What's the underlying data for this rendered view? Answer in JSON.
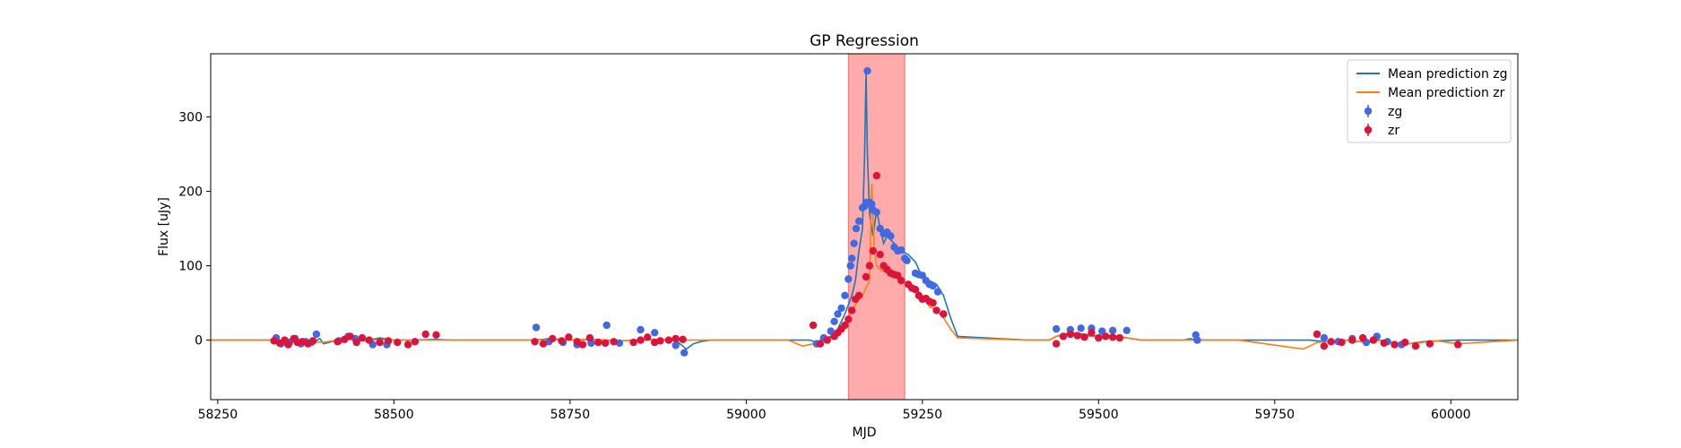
{
  "chart_data": {
    "type": "scatter",
    "title": "GP Regression",
    "xlabel": "MJD",
    "ylabel": "Flux [uJy]",
    "xlim": [
      58240,
      60095
    ],
    "ylim": [
      -80,
      385
    ],
    "xticks": [
      58250,
      58500,
      58750,
      59000,
      59250,
      59500,
      59750,
      60000
    ],
    "yticks": [
      0,
      100,
      200,
      300
    ],
    "grid": false,
    "legend_position": "top-right",
    "highlight_region": {
      "x_start": 59145,
      "x_end": 59225,
      "color": "#ff0000",
      "alpha": 0.33
    },
    "legend": [
      {
        "label": "Mean prediction zg",
        "kind": "line",
        "color": "#1f77b4"
      },
      {
        "label": "Mean prediction zr",
        "kind": "line",
        "color": "#ff7f0e"
      },
      {
        "label": "zg",
        "kind": "marker",
        "color": "#4169e1"
      },
      {
        "label": "zr",
        "kind": "marker",
        "color": "#dc143c"
      }
    ],
    "series": [
      {
        "name": "Mean prediction zg",
        "type": "line",
        "color": "#1f77b4",
        "x": [
          58240,
          58330,
          58350,
          58370,
          58385,
          58395,
          58400,
          58420,
          58440,
          58460,
          58480,
          58500,
          58530,
          58560,
          58580,
          58600,
          58700,
          58720,
          58750,
          58780,
          58800,
          58820,
          58850,
          58880,
          58900,
          58915,
          58925,
          58935,
          58950,
          59000,
          59070,
          59090,
          59100,
          59110,
          59120,
          59130,
          59140,
          59150,
          59155,
          59160,
          59165,
          59168,
          59170,
          59172,
          59175,
          59180,
          59185,
          59190,
          59195,
          59200,
          59210,
          59220,
          59230,
          59240,
          59250,
          59260,
          59270,
          59280,
          59290,
          59300,
          59400,
          59430,
          59440,
          59460,
          59480,
          59500,
          59520,
          59540,
          59560,
          59600,
          59620,
          59630,
          59640,
          59650,
          59700,
          59800,
          59820,
          59850,
          59880,
          59900,
          59920,
          59940,
          59960,
          59980,
          60010,
          60095
        ],
        "y": [
          0,
          0,
          -2,
          1,
          -3,
          2,
          -5,
          0,
          2,
          -1,
          3,
          0,
          0,
          1,
          0,
          0,
          0,
          2,
          0,
          1,
          0,
          -1,
          0,
          1,
          0,
          -12,
          -5,
          -2,
          0,
          0,
          0,
          0,
          -3,
          2,
          5,
          15,
          35,
          60,
          80,
          120,
          150,
          250,
          360,
          250,
          170,
          140,
          175,
          150,
          130,
          140,
          130,
          120,
          115,
          105,
          85,
          80,
          75,
          60,
          30,
          5,
          0,
          0,
          5,
          10,
          8,
          5,
          6,
          3,
          0,
          0,
          0,
          2,
          0,
          0,
          0,
          0,
          -2,
          0,
          -3,
          0,
          -4,
          -5,
          -2,
          -1,
          0,
          0
        ]
      },
      {
        "name": "Mean prediction zr",
        "type": "line",
        "color": "#ff7f0e",
        "x": [
          58240,
          58330,
          58350,
          58370,
          58385,
          58400,
          58420,
          58440,
          58460,
          58480,
          58500,
          58530,
          58560,
          58600,
          58700,
          58720,
          58750,
          58780,
          58800,
          58820,
          58850,
          58880,
          58900,
          58950,
          59000,
          59060,
          59080,
          59100,
          59110,
          59120,
          59130,
          59140,
          59150,
          59160,
          59165,
          59170,
          59175,
          59178,
          59182,
          59185,
          59190,
          59200,
          59210,
          59220,
          59230,
          59240,
          59250,
          59260,
          59270,
          59280,
          59290,
          59300,
          59400,
          59430,
          59440,
          59460,
          59480,
          59500,
          59520,
          59540,
          59560,
          59600,
          59700,
          59790,
          59800,
          59810,
          59820,
          59850,
          59880,
          59900,
          59920,
          59940,
          59960,
          59980,
          60010,
          60095
        ],
        "y": [
          0,
          0,
          -3,
          1,
          -2,
          -3,
          0,
          2,
          -1,
          1,
          0,
          0,
          0,
          0,
          0,
          1,
          0,
          1,
          0,
          -1,
          0,
          1,
          0,
          0,
          0,
          0,
          -8,
          -4,
          0,
          3,
          10,
          20,
          40,
          55,
          60,
          70,
          80,
          210,
          120,
          100,
          95,
          90,
          85,
          80,
          75,
          70,
          60,
          45,
          40,
          30,
          15,
          3,
          0,
          0,
          5,
          8,
          6,
          4,
          5,
          3,
          0,
          0,
          0,
          -12,
          -8,
          -3,
          -2,
          0,
          -3,
          0,
          -4,
          -5,
          -3,
          -1,
          -5,
          0
        ]
      },
      {
        "name": "zg",
        "type": "scatter",
        "color": "#4169e1",
        "x": [
          58333,
          58340,
          58352,
          58360,
          58368,
          58375,
          58383,
          58390,
          58422,
          58435,
          58445,
          58470,
          58490,
          58702,
          58720,
          58740,
          58760,
          58780,
          58802,
          58820,
          58850,
          58870,
          58900,
          58912,
          59100,
          59110,
          59120,
          59125,
          59130,
          59135,
          59140,
          59145,
          59148,
          59150,
          59153,
          59156,
          59160,
          59165,
          59168,
          59170,
          59172,
          59175,
          59178,
          59180,
          59185,
          59190,
          59195,
          59200,
          59205,
          59210,
          59215,
          59220,
          59225,
          59228,
          59240,
          59245,
          59250,
          59255,
          59260,
          59265,
          59272,
          59440,
          59460,
          59475,
          59490,
          59505,
          59520,
          59540,
          59638,
          59640,
          59820,
          59840,
          59860,
          59880,
          59895,
          59910,
          59930
        ],
        "y": [
          3,
          -5,
          -3,
          2,
          -5,
          -2,
          -3,
          8,
          -1,
          5,
          2,
          -6,
          -6,
          17,
          -2,
          -3,
          -6,
          -4,
          20,
          -4,
          14,
          10,
          -7,
          -17,
          -5,
          3,
          12,
          25,
          35,
          43,
          60,
          82,
          100,
          110,
          130,
          150,
          160,
          178,
          180,
          185,
          362,
          185,
          183,
          175,
          172,
          150,
          143,
          145,
          140,
          125,
          120,
          121,
          110,
          107,
          90,
          88,
          87,
          80,
          75,
          73,
          65,
          15,
          14,
          16,
          16,
          12,
          13,
          13,
          7,
          0,
          3,
          -2,
          2,
          -3,
          5,
          -2,
          -6
        ]
      },
      {
        "name": "zr",
        "type": "scatter",
        "color": "#dc143c",
        "x": [
          58330,
          58338,
          58345,
          58350,
          58358,
          58363,
          58370,
          58378,
          58385,
          58420,
          58430,
          58438,
          58447,
          58455,
          58465,
          58480,
          58492,
          58505,
          58520,
          58530,
          58545,
          58560,
          58700,
          58712,
          58725,
          58738,
          58748,
          58760,
          58768,
          58778,
          58790,
          58800,
          58812,
          58840,
          58850,
          58860,
          58870,
          58878,
          58890,
          58900,
          58910,
          59095,
          59105,
          59115,
          59125,
          59130,
          59135,
          59140,
          59145,
          59150,
          59155,
          59160,
          59170,
          59175,
          59180,
          59185,
          59190,
          59195,
          59200,
          59205,
          59210,
          59215,
          59220,
          59230,
          59235,
          59240,
          59245,
          59250,
          59255,
          59260,
          59265,
          59270,
          59280,
          59440,
          59450,
          59460,
          59470,
          59480,
          59490,
          59500,
          59510,
          59520,
          59530,
          59810,
          59820,
          59830,
          59845,
          59860,
          59875,
          59890,
          59905,
          59920,
          59935,
          59950,
          59970,
          60010
        ],
        "y": [
          -1,
          -4,
          0,
          -6,
          2,
          -3,
          -2,
          -5,
          -1,
          -2,
          1,
          5,
          -3,
          3,
          0,
          -3,
          -1,
          -3,
          -6,
          -2,
          8,
          7,
          -2,
          -5,
          2,
          -1,
          4,
          -2,
          -6,
          3,
          -3,
          -4,
          -2,
          -3,
          0,
          4,
          -3,
          -1,
          0,
          2,
          1,
          20,
          -5,
          0,
          5,
          10,
          15,
          20,
          28,
          40,
          55,
          60,
          85,
          100,
          120,
          221,
          115,
          100,
          95,
          90,
          88,
          87,
          80,
          75,
          70,
          68,
          60,
          55,
          56,
          52,
          50,
          40,
          35,
          -5,
          5,
          8,
          6,
          4,
          10,
          3,
          5,
          4,
          3,
          8,
          -8,
          -2,
          -3,
          0,
          3,
          0,
          -4,
          -6,
          -3,
          -8,
          -5,
          -6
        ]
      }
    ]
  }
}
